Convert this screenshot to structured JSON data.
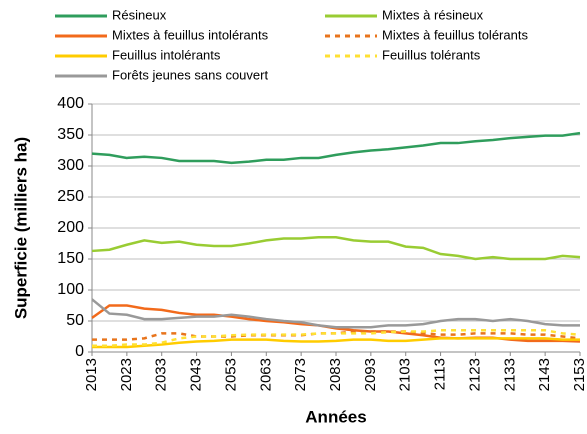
{
  "chart_data": {
    "type": "line",
    "x": [
      2013,
      2018,
      2023,
      2028,
      2033,
      2038,
      2043,
      2048,
      2053,
      2058,
      2063,
      2068,
      2073,
      2078,
      2083,
      2088,
      2093,
      2098,
      2103,
      2108,
      2113,
      2118,
      2123,
      2128,
      2133,
      2138,
      2143,
      2148,
      2153
    ],
    "xlim": [
      2013,
      2153
    ],
    "xticks": [
      2013,
      2023,
      2033,
      2043,
      2053,
      2063,
      2073,
      2083,
      2093,
      2103,
      2113,
      2123,
      2133,
      2143,
      2153
    ],
    "ylim": [
      0,
      400
    ],
    "yticks": [
      0,
      50,
      100,
      150,
      200,
      250,
      300,
      350,
      400
    ],
    "grid": true,
    "xlabel": "Années",
    "ylabel": "Superficie (milliers ha)",
    "series": [
      {
        "name": "Résineux",
        "color": "#2f9d5c",
        "dashed": false,
        "values": [
          320,
          318,
          313,
          315,
          313,
          308,
          308,
          308,
          305,
          307,
          310,
          310,
          313,
          313,
          318,
          322,
          325,
          327,
          330,
          333,
          337,
          337,
          340,
          342,
          345,
          347,
          349,
          349,
          353
        ]
      },
      {
        "name": "Mixtes à résineux",
        "color": "#99cc33",
        "dashed": false,
        "values": [
          163,
          165,
          173,
          180,
          176,
          178,
          173,
          171,
          171,
          175,
          180,
          183,
          183,
          185,
          185,
          180,
          178,
          178,
          170,
          168,
          158,
          155,
          150,
          153,
          150,
          150,
          150,
          155,
          153
        ]
      },
      {
        "name": "Mixtes à feuillus intolérants",
        "color": "#f26a1b",
        "dashed": false,
        "values": [
          55,
          75,
          75,
          70,
          68,
          63,
          60,
          60,
          57,
          53,
          50,
          48,
          45,
          43,
          38,
          35,
          33,
          33,
          30,
          27,
          23,
          22,
          23,
          23,
          20,
          18,
          18,
          18,
          17
        ]
      },
      {
        "name": "Mixtes à feuillus tolérants",
        "color": "#e8741c",
        "dashed": true,
        "values": [
          20,
          20,
          20,
          22,
          30,
          30,
          25,
          25,
          25,
          27,
          27,
          27,
          27,
          30,
          30,
          33,
          33,
          33,
          33,
          30,
          28,
          28,
          30,
          30,
          30,
          28,
          28,
          25,
          22
        ]
      },
      {
        "name": "Feuillus intolérants",
        "color": "#ffcc00",
        "dashed": false,
        "values": [
          8,
          8,
          8,
          10,
          12,
          15,
          17,
          18,
          20,
          20,
          20,
          18,
          17,
          17,
          18,
          20,
          20,
          18,
          18,
          20,
          22,
          22,
          22,
          22,
          22,
          22,
          22,
          20,
          20
        ]
      },
      {
        "name": "Feuillus tolérants",
        "color": "#ffe033",
        "dashed": true,
        "values": [
          10,
          10,
          12,
          12,
          15,
          22,
          25,
          25,
          27,
          28,
          28,
          28,
          28,
          30,
          30,
          30,
          30,
          32,
          33,
          33,
          35,
          35,
          35,
          35,
          35,
          35,
          35,
          30,
          28
        ]
      },
      {
        "name": "Forêts jeunes sans couvert",
        "color": "#999999",
        "dashed": false,
        "values": [
          85,
          62,
          60,
          53,
          53,
          55,
          57,
          57,
          60,
          57,
          53,
          50,
          48,
          43,
          40,
          40,
          40,
          43,
          43,
          45,
          50,
          53,
          53,
          50,
          53,
          50,
          45,
          43,
          43
        ]
      }
    ]
  }
}
